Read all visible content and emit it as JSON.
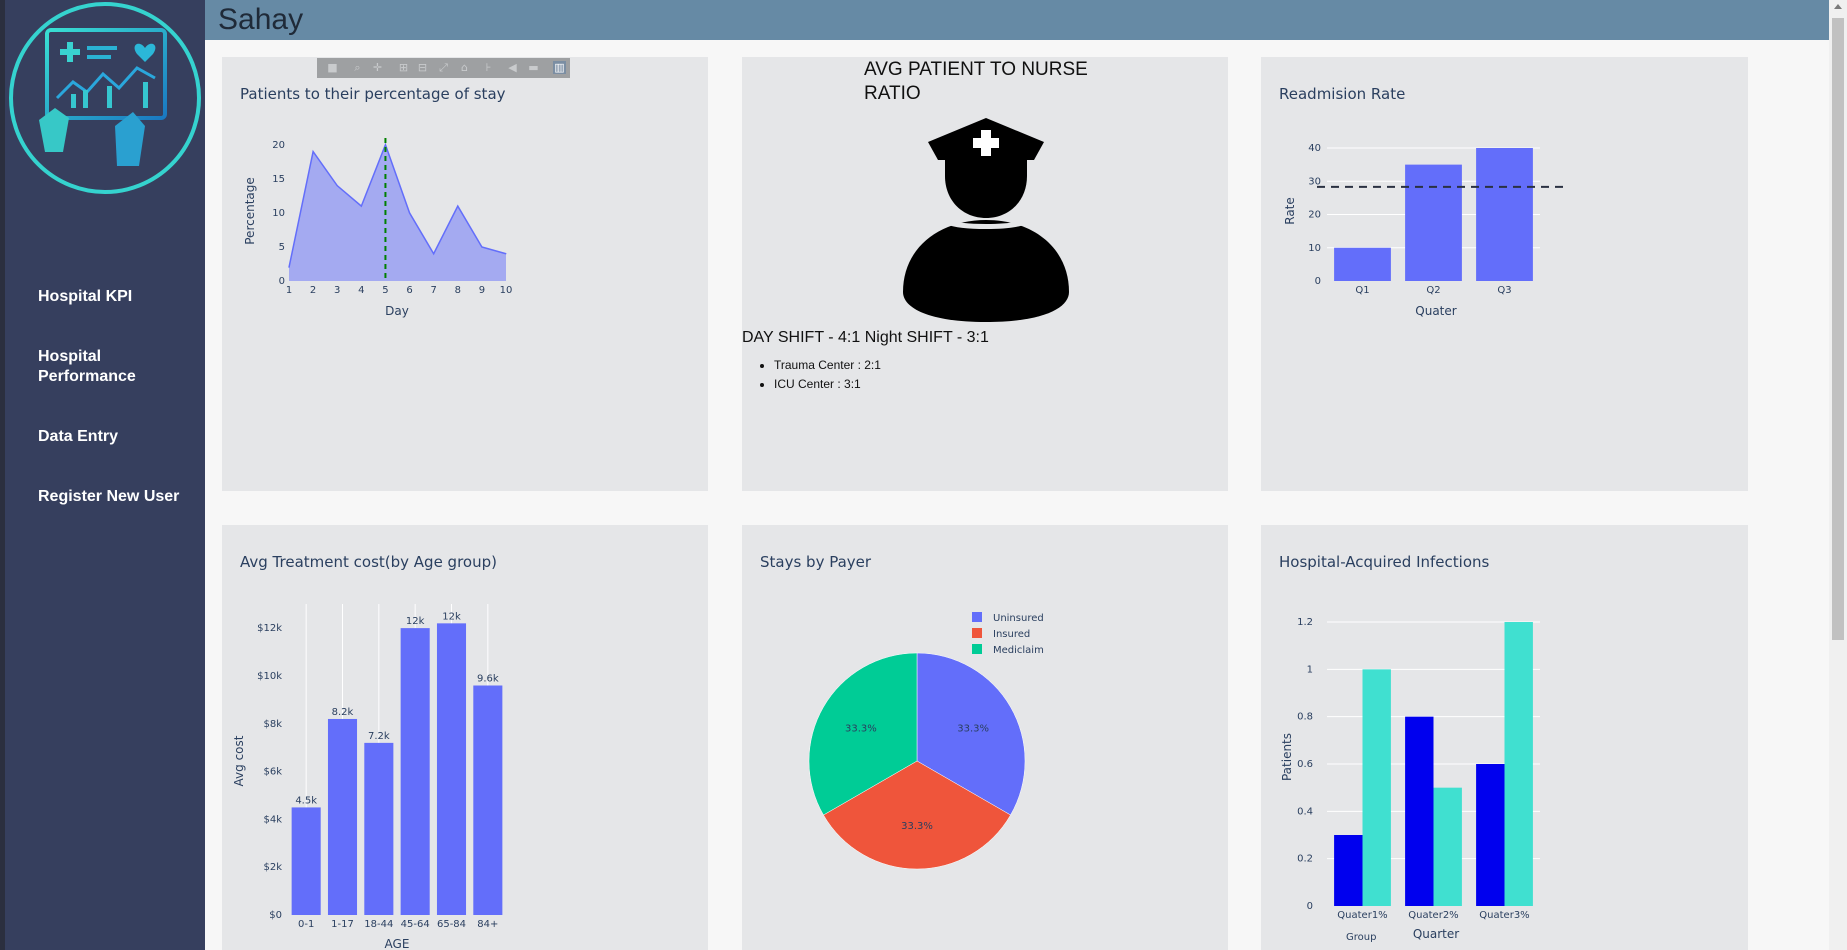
{
  "app": {
    "title": "Sahay"
  },
  "sidebar": {
    "items": [
      {
        "label": "Hospital KPI"
      },
      {
        "label": "Hospital Performance"
      },
      {
        "label": "Data Entry"
      },
      {
        "label": "Register New User"
      }
    ]
  },
  "colors": {
    "primary": "#636efa",
    "red": "#ef553b",
    "green": "#00cc96",
    "blue": "#0000ee",
    "turquoise": "#40e0d0",
    "sidebar": "#363f5e",
    "header": "#668aa5",
    "card": "#e5e6e8"
  },
  "modebar": {
    "icons": [
      "camera-icon",
      "zoom-icon",
      "pan-icon",
      "zoom-in-icon",
      "zoom-out-icon",
      "autoscale-icon",
      "home-icon",
      "spike-lines-icon",
      "hover-closest-icon",
      "hover-compare-icon",
      "plotly-logo-icon"
    ]
  },
  "nurse_card": {
    "title": "AVG PATIENT TO NURSE RATIO",
    "icon": "nurse-icon",
    "shift_text": "DAY SHIFT - 4:1 Night SHIFT - 3:1",
    "items": [
      "Trauma Center : 2:1",
      "ICU Center : 3:1"
    ]
  },
  "chart_data": [
    {
      "id": "stay",
      "type": "area",
      "title": "Patients to their percentage of stay",
      "xlabel": "Day",
      "ylabel": "Percentage",
      "x": [
        1,
        2,
        3,
        4,
        5,
        6,
        7,
        8,
        9,
        10
      ],
      "y": [
        2,
        19,
        14,
        11,
        20,
        10,
        4,
        11,
        5,
        4
      ],
      "xlim": [
        1,
        10
      ],
      "ylim": [
        0,
        21
      ],
      "yticks": [
        0,
        5,
        10,
        15,
        20
      ],
      "xticks": [
        1,
        2,
        3,
        4,
        5,
        6,
        7,
        8,
        9,
        10
      ],
      "vline": {
        "x": 5,
        "style": "dashed",
        "color": "#008000"
      }
    },
    {
      "id": "readmission",
      "type": "bar",
      "title": "Readmision Rate",
      "xlabel": "Quater",
      "ylabel": "Rate",
      "categories": [
        "Q1",
        "Q2",
        "Q3"
      ],
      "values": [
        10,
        35,
        40
      ],
      "ylim": [
        0,
        40
      ],
      "yticks": [
        0,
        10,
        20,
        30,
        40
      ],
      "hline": {
        "y": 28.3,
        "style": "dashed",
        "color": "#2a3142"
      }
    },
    {
      "id": "treatment",
      "type": "bar",
      "title": "Avg Treatment cost(by Age group)",
      "xlabel": "AGE",
      "ylabel": "Avg cost",
      "categories": [
        "0-1",
        "1-17",
        "18-44",
        "45-64",
        "65-84",
        "84+"
      ],
      "values": [
        4500,
        8200,
        7200,
        12000,
        12200,
        9600
      ],
      "data_labels": [
        "4.5k",
        "8.2k",
        "7.2k",
        "12k",
        "12k",
        "9.6k"
      ],
      "ylim": [
        0,
        12800
      ],
      "yticks": [
        0,
        2000,
        4000,
        6000,
        8000,
        10000,
        12000
      ],
      "ytick_labels": [
        "$0",
        "$2k",
        "$4k",
        "$6k",
        "$8k",
        "$10k",
        "$12k"
      ]
    },
    {
      "id": "payer",
      "type": "pie",
      "title": "Stays by Payer",
      "labels": [
        "Uninsured",
        "Insured",
        "Mediclaim"
      ],
      "values": [
        33.3,
        33.3,
        33.3
      ],
      "slice_labels": [
        "33.3%",
        "33.3%",
        "33.3%"
      ],
      "legend": "top-right"
    },
    {
      "id": "infections",
      "type": "bar",
      "title": "Hospital-Acquired Infections",
      "xlabel": "Quarter",
      "ylabel": "Patients",
      "categories": [
        "Quater1%",
        "Quater2%",
        "Quater3%"
      ],
      "series": [
        {
          "values": [
            0.3,
            0.8,
            0.6
          ]
        },
        {
          "values": [
            1.0,
            0.5,
            1.2
          ]
        }
      ],
      "ylim": [
        0,
        1.2
      ],
      "yticks": [
        0,
        0.2,
        0.4,
        0.6,
        0.8,
        1,
        1.2
      ],
      "ytick_labels": [
        "0",
        "0.2",
        "0.4",
        "0.6",
        "0.8",
        "1",
        "1.2"
      ],
      "legend_title": "Group"
    }
  ]
}
